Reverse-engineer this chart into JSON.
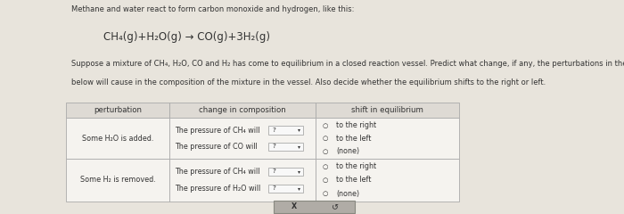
{
  "title_line1": "Methane and water react to form carbon monoxide and hydrogen, like this:",
  "equation": "CH₄(g)+H₂O(g) → CO(g)+3H₂(g)",
  "paragraph1": "Suppose a mixture of CH₄, H₂O, CO and H₂ has come to equilibrium in a closed reaction vessel. Predict what change, if any, the perturbations in the table",
  "paragraph2": "below will cause in the composition of the mixture in the vessel. Also decide whether the equilibrium shifts to the right or left.",
  "col_headers": [
    "perturbation",
    "change in composition",
    "shift in equilibrium"
  ],
  "row1_perturbation": "Some H₂O is added.",
  "row1_change1": "The pressure of CH₄ will",
  "row1_change2": "The pressure of CO will",
  "row1_shift": [
    "to the right",
    "to the left",
    "(none)"
  ],
  "row2_perturbation": "Some H₂ is removed.",
  "row2_change1": "The pressure of CH₄ will",
  "row2_change2": "The pressure of H₂O will",
  "row2_shift": [
    "to the right",
    "to the left",
    "(none)"
  ],
  "dropdown_label": "?",
  "bg_color": "#e8e4dc",
  "table_bg": "#f5f3ef",
  "header_bg": "#dedad4",
  "border_color": "#aaaaaa",
  "text_color": "#333333",
  "btn_bg": "#b0aca6",
  "btn_border": "#888880",
  "font_size_body": 5.8,
  "font_size_header": 6.2,
  "font_size_title": 6.0,
  "font_size_eq": 8.5
}
